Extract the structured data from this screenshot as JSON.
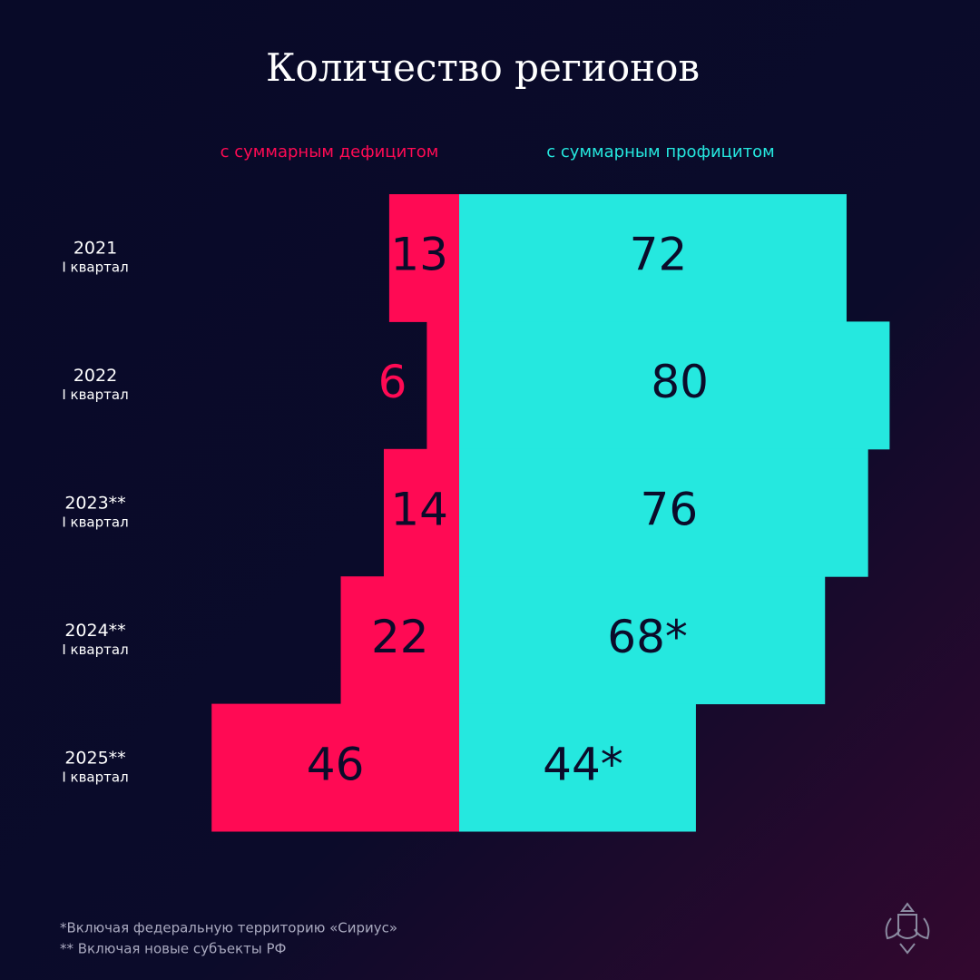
{
  "chart_data": {
    "type": "diverging-bar",
    "title": "Количество регионов",
    "categories": [
      "2021",
      "2022",
      "2023**",
      "2024**",
      "2025**"
    ],
    "category_sublabels": [
      "I квартал",
      "I квартал",
      "I квартал",
      "I квартал",
      "I квартал"
    ],
    "series": [
      {
        "name": "с суммарным дефицитом",
        "color": "#ff0a54",
        "values": [
          13,
          6,
          14,
          22,
          46
        ]
      },
      {
        "name": "с суммарным профицитом",
        "color": "#25e8df",
        "values": [
          72,
          80,
          76,
          68,
          44
        ],
        "value_labels": [
          "72",
          "80",
          "76",
          "68*",
          "44*"
        ]
      }
    ],
    "footnotes": [
      "*Включая федеральную территорию «Сириус»",
      "** Включая новые субъекты РФ"
    ]
  }
}
